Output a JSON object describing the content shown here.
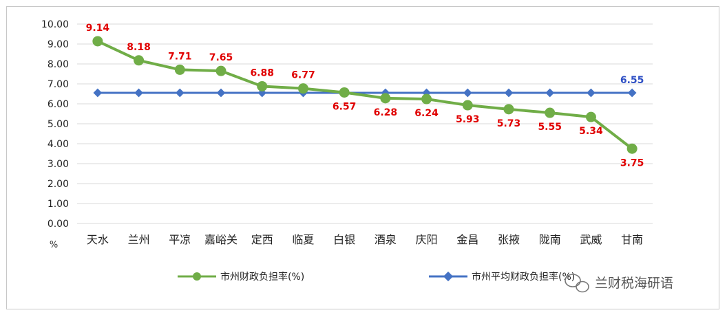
{
  "chart_data": {
    "type": "line",
    "categories": [
      "天水",
      "兰州",
      "平凉",
      "嘉峪关",
      "定西",
      "临夏",
      "白银",
      "酒泉",
      "庆阳",
      "金昌",
      "张掖",
      "陇南",
      "武威",
      "甘南"
    ],
    "series": [
      {
        "name": "市州财政负担率(%)",
        "values": [
          9.14,
          8.18,
          7.71,
          7.65,
          6.88,
          6.77,
          6.57,
          6.28,
          6.24,
          5.93,
          5.73,
          5.55,
          5.34,
          3.75
        ],
        "data_labels": [
          "9.14",
          "8.18",
          "7.71",
          "7.65",
          "6.88",
          "6.77",
          "6.57",
          "6.28",
          "6.24",
          "5.93",
          "5.73",
          "5.55",
          "5.34",
          "3.75"
        ],
        "color": "#70ad47",
        "label_color": "#e00000",
        "marker": "circle"
      },
      {
        "name": "市州平均财政负担率(%)",
        "values": [
          6.55,
          6.55,
          6.55,
          6.55,
          6.55,
          6.55,
          6.55,
          6.55,
          6.55,
          6.55,
          6.55,
          6.55,
          6.55,
          6.55
        ],
        "data_label": "6.55",
        "color": "#4472c4",
        "label_color": "#2e4fc4",
        "marker": "diamond"
      }
    ],
    "ylim": [
      0,
      10
    ],
    "yticks": [
      "0.00",
      "1.00",
      "2.00",
      "3.00",
      "4.00",
      "5.00",
      "6.00",
      "7.00",
      "8.00",
      "9.00",
      "10.00"
    ],
    "y_unit": "%",
    "grid": true,
    "legend_position": "bottom"
  },
  "watermark": {
    "text": "兰财税海研语",
    "icon": "wechat-icon"
  }
}
